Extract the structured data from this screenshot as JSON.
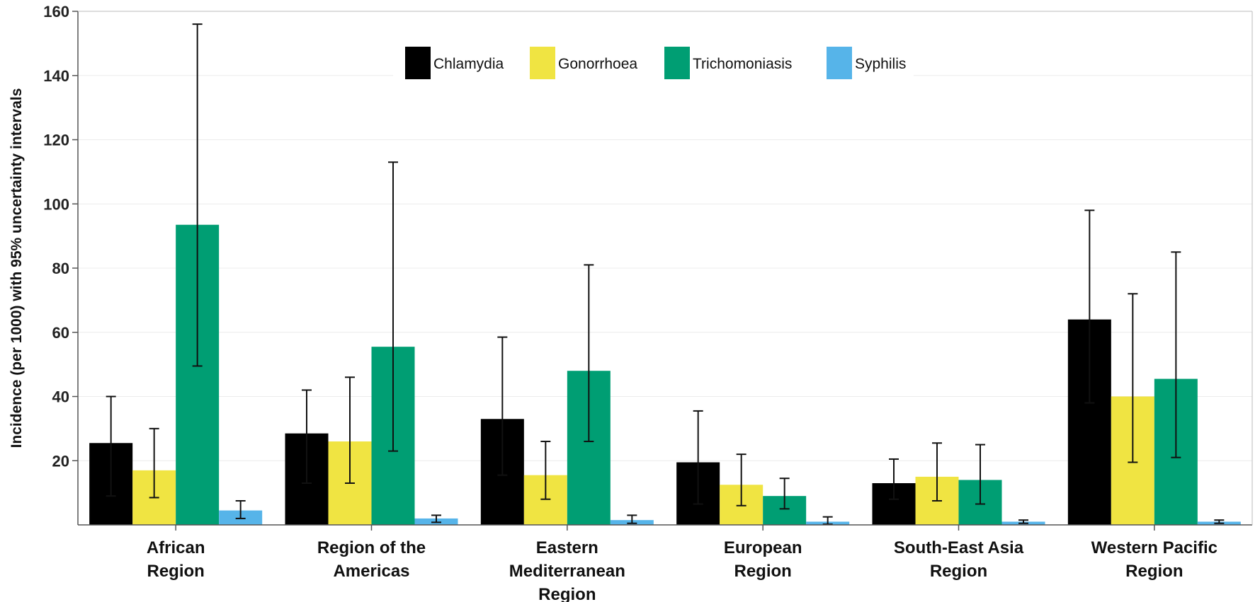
{
  "chart_data": {
    "type": "bar",
    "title": "",
    "xlabel": "",
    "ylabel": "Incidence (per 1000) with 95% uncertainty intervals",
    "ylim": [
      0,
      160
    ],
    "yticks": [
      20,
      40,
      60,
      80,
      100,
      120,
      140,
      160
    ],
    "grid": true,
    "legend_position": "top-center",
    "categories": [
      [
        "African",
        "Region"
      ],
      [
        "Region of the",
        "Americas"
      ],
      [
        "Eastern",
        "Mediterranean",
        "Region"
      ],
      [
        "European",
        "Region"
      ],
      [
        "South-East Asia",
        "Region"
      ],
      [
        "Western Pacific",
        "Region"
      ]
    ],
    "series": [
      {
        "name": "Chlamydia",
        "color": "#000000",
        "values": [
          25.5,
          28.5,
          33,
          19.5,
          13,
          64
        ],
        "lower": [
          9,
          13,
          15.5,
          6.5,
          8,
          38
        ],
        "upper": [
          40,
          42,
          58.5,
          35.5,
          20.5,
          98
        ]
      },
      {
        "name": "Gonorrhoea",
        "color": "#f0e442",
        "values": [
          17,
          26,
          15.5,
          12.5,
          15,
          40
        ],
        "lower": [
          8.5,
          13,
          8,
          6,
          7.5,
          19.5
        ],
        "upper": [
          30,
          46,
          26,
          22,
          25.5,
          72
        ]
      },
      {
        "name": "Trichomoniasis",
        "color": "#009e73",
        "values": [
          93.5,
          55.5,
          48,
          9,
          14,
          45.5
        ],
        "lower": [
          49.5,
          23,
          26,
          5,
          6.5,
          21
        ],
        "upper": [
          156,
          113,
          81,
          14.5,
          25,
          85
        ]
      },
      {
        "name": "Syphilis",
        "color": "#56b4e9",
        "values": [
          4.5,
          2,
          1.5,
          1,
          1,
          1
        ],
        "lower": [
          2,
          0.8,
          0.5,
          0.2,
          0.5,
          0.5
        ],
        "upper": [
          7.5,
          3,
          3,
          2.5,
          1.5,
          1.5
        ]
      }
    ]
  }
}
